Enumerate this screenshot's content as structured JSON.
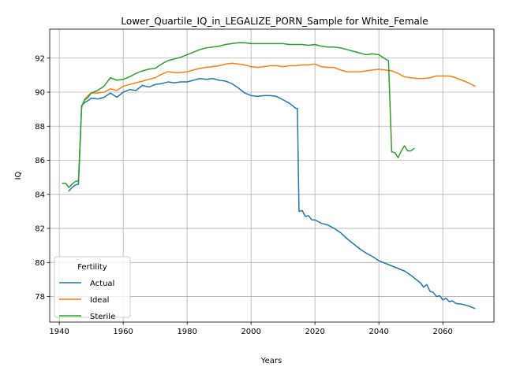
{
  "chart_data": {
    "type": "line",
    "title": "Lower_Quartile_IQ_in_LEGALIZE_PORN_Sample for White_Female",
    "xlabel": "Years",
    "ylabel": "IQ",
    "xlim": [
      1937,
      2076
    ],
    "ylim": [
      76.5,
      93.7
    ],
    "xticks": [
      1940,
      1960,
      1980,
      2000,
      2020,
      2040,
      2060
    ],
    "yticks": [
      78,
      80,
      82,
      84,
      86,
      88,
      90,
      92
    ],
    "grid": true,
    "legend": {
      "title": "Fertility",
      "placement": "lower-left"
    },
    "series": [
      {
        "name": "Actual",
        "color": "#1f77b4",
        "points": [
          [
            1943,
            84.2
          ],
          [
            1944,
            84.4
          ],
          [
            1945,
            84.55
          ],
          [
            1946,
            84.6
          ],
          [
            1947,
            89.2
          ],
          [
            1948,
            89.4
          ],
          [
            1949,
            89.5
          ],
          [
            1950,
            89.65
          ],
          [
            1952,
            89.6
          ],
          [
            1954,
            89.7
          ],
          [
            1956,
            89.95
          ],
          [
            1958,
            89.7
          ],
          [
            1960,
            90.0
          ],
          [
            1962,
            90.15
          ],
          [
            1964,
            90.1
          ],
          [
            1966,
            90.4
          ],
          [
            1968,
            90.3
          ],
          [
            1970,
            90.45
          ],
          [
            1972,
            90.5
          ],
          [
            1974,
            90.6
          ],
          [
            1976,
            90.55
          ],
          [
            1978,
            90.6
          ],
          [
            1980,
            90.6
          ],
          [
            1982,
            90.7
          ],
          [
            1984,
            90.8
          ],
          [
            1986,
            90.75
          ],
          [
            1988,
            90.8
          ],
          [
            1990,
            90.7
          ],
          [
            1992,
            90.65
          ],
          [
            1994,
            90.5
          ],
          [
            1996,
            90.25
          ],
          [
            1998,
            89.95
          ],
          [
            2000,
            89.8
          ],
          [
            2002,
            89.75
          ],
          [
            2004,
            89.8
          ],
          [
            2006,
            89.8
          ],
          [
            2008,
            89.75
          ],
          [
            2010,
            89.55
          ],
          [
            2012,
            89.35
          ],
          [
            2014,
            89.05
          ],
          [
            2014.5,
            89.05
          ],
          [
            2015,
            83.0
          ],
          [
            2016,
            83.05
          ],
          [
            2017,
            82.7
          ],
          [
            2018,
            82.75
          ],
          [
            2019,
            82.5
          ],
          [
            2020,
            82.5
          ],
          [
            2022,
            82.3
          ],
          [
            2024,
            82.2
          ],
          [
            2026,
            82.0
          ],
          [
            2028,
            81.75
          ],
          [
            2030,
            81.4
          ],
          [
            2032,
            81.1
          ],
          [
            2034,
            80.8
          ],
          [
            2036,
            80.55
          ],
          [
            2038,
            80.35
          ],
          [
            2040,
            80.1
          ],
          [
            2042,
            79.95
          ],
          [
            2044,
            79.8
          ],
          [
            2046,
            79.65
          ],
          [
            2048,
            79.5
          ],
          [
            2050,
            79.25
          ],
          [
            2052,
            78.95
          ],
          [
            2053,
            78.8
          ],
          [
            2054,
            78.55
          ],
          [
            2055,
            78.7
          ],
          [
            2056,
            78.3
          ],
          [
            2057,
            78.25
          ],
          [
            2058,
            78.0
          ],
          [
            2059,
            78.05
          ],
          [
            2060,
            77.8
          ],
          [
            2061,
            77.9
          ],
          [
            2062,
            77.7
          ],
          [
            2063,
            77.75
          ],
          [
            2064,
            77.6
          ],
          [
            2066,
            77.55
          ],
          [
            2068,
            77.45
          ],
          [
            2070,
            77.3
          ]
        ]
      },
      {
        "name": "Ideal",
        "color": "#ff7f0e",
        "points": [
          [
            1947,
            89.1
          ],
          [
            1948,
            89.6
          ],
          [
            1949,
            89.8
          ],
          [
            1950,
            89.95
          ],
          [
            1952,
            89.95
          ],
          [
            1954,
            90.0
          ],
          [
            1956,
            90.2
          ],
          [
            1958,
            90.1
          ],
          [
            1960,
            90.35
          ],
          [
            1962,
            90.45
          ],
          [
            1964,
            90.55
          ],
          [
            1966,
            90.65
          ],
          [
            1968,
            90.75
          ],
          [
            1970,
            90.85
          ],
          [
            1972,
            91.05
          ],
          [
            1974,
            91.2
          ],
          [
            1976,
            91.15
          ],
          [
            1978,
            91.15
          ],
          [
            1980,
            91.2
          ],
          [
            1982,
            91.3
          ],
          [
            1984,
            91.4
          ],
          [
            1986,
            91.45
          ],
          [
            1988,
            91.5
          ],
          [
            1990,
            91.55
          ],
          [
            1992,
            91.65
          ],
          [
            1994,
            91.7
          ],
          [
            1996,
            91.65
          ],
          [
            1998,
            91.6
          ],
          [
            2000,
            91.5
          ],
          [
            2002,
            91.45
          ],
          [
            2004,
            91.5
          ],
          [
            2006,
            91.55
          ],
          [
            2008,
            91.55
          ],
          [
            2010,
            91.5
          ],
          [
            2012,
            91.55
          ],
          [
            2014,
            91.55
          ],
          [
            2016,
            91.6
          ],
          [
            2018,
            91.6
          ],
          [
            2020,
            91.65
          ],
          [
            2022,
            91.5
          ],
          [
            2024,
            91.45
          ],
          [
            2026,
            91.45
          ],
          [
            2028,
            91.3
          ],
          [
            2030,
            91.2
          ],
          [
            2032,
            91.2
          ],
          [
            2034,
            91.2
          ],
          [
            2036,
            91.25
          ],
          [
            2038,
            91.3
          ],
          [
            2040,
            91.35
          ],
          [
            2042,
            91.3
          ],
          [
            2044,
            91.25
          ],
          [
            2046,
            91.1
          ],
          [
            2048,
            90.9
          ],
          [
            2050,
            90.85
          ],
          [
            2052,
            90.8
          ],
          [
            2054,
            90.8
          ],
          [
            2056,
            90.85
          ],
          [
            2058,
            90.95
          ],
          [
            2060,
            90.95
          ],
          [
            2062,
            90.95
          ],
          [
            2064,
            90.85
          ],
          [
            2066,
            90.7
          ],
          [
            2068,
            90.55
          ],
          [
            2070,
            90.35
          ]
        ]
      },
      {
        "name": "Sterile",
        "color": "#2ca02c",
        "points": [
          [
            1941,
            84.65
          ],
          [
            1942,
            84.65
          ],
          [
            1943,
            84.4
          ],
          [
            1944,
            84.6
          ],
          [
            1945,
            84.75
          ],
          [
            1946,
            84.8
          ],
          [
            1947,
            89.2
          ],
          [
            1948,
            89.55
          ],
          [
            1949,
            89.7
          ],
          [
            1950,
            89.95
          ],
          [
            1952,
            90.1
          ],
          [
            1954,
            90.35
          ],
          [
            1956,
            90.85
          ],
          [
            1958,
            90.7
          ],
          [
            1960,
            90.75
          ],
          [
            1962,
            90.9
          ],
          [
            1964,
            91.1
          ],
          [
            1966,
            91.25
          ],
          [
            1968,
            91.35
          ],
          [
            1970,
            91.4
          ],
          [
            1972,
            91.65
          ],
          [
            1974,
            91.85
          ],
          [
            1976,
            91.95
          ],
          [
            1978,
            92.05
          ],
          [
            1980,
            92.2
          ],
          [
            1982,
            92.35
          ],
          [
            1984,
            92.5
          ],
          [
            1986,
            92.6
          ],
          [
            1988,
            92.65
          ],
          [
            1990,
            92.7
          ],
          [
            1992,
            92.8
          ],
          [
            1994,
            92.85
          ],
          [
            1996,
            92.9
          ],
          [
            1998,
            92.9
          ],
          [
            2000,
            92.85
          ],
          [
            2002,
            92.85
          ],
          [
            2004,
            92.85
          ],
          [
            2006,
            92.85
          ],
          [
            2008,
            92.85
          ],
          [
            2010,
            92.85
          ],
          [
            2012,
            92.8
          ],
          [
            2014,
            92.8
          ],
          [
            2016,
            92.8
          ],
          [
            2018,
            92.75
          ],
          [
            2020,
            92.8
          ],
          [
            2022,
            92.7
          ],
          [
            2024,
            92.65
          ],
          [
            2026,
            92.65
          ],
          [
            2028,
            92.6
          ],
          [
            2030,
            92.5
          ],
          [
            2032,
            92.4
          ],
          [
            2034,
            92.3
          ],
          [
            2036,
            92.2
          ],
          [
            2038,
            92.25
          ],
          [
            2040,
            92.2
          ],
          [
            2042,
            91.95
          ],
          [
            2043,
            91.85
          ],
          [
            2044,
            86.5
          ],
          [
            2045,
            86.45
          ],
          [
            2046,
            86.15
          ],
          [
            2047,
            86.55
          ],
          [
            2048,
            86.85
          ],
          [
            2049,
            86.55
          ],
          [
            2050,
            86.55
          ],
          [
            2051,
            86.7
          ]
        ]
      }
    ]
  }
}
